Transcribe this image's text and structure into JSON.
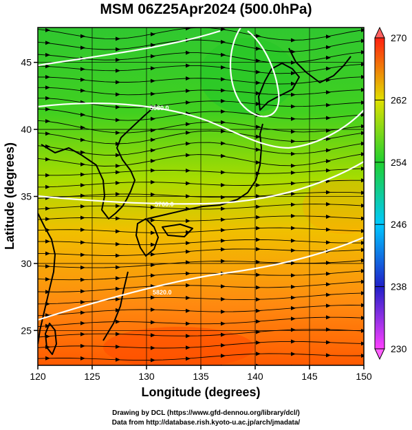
{
  "title": "MSM 06Z25Apr2024 (500.0hPa)",
  "axes": {
    "xlabel": "Longitude (degrees)",
    "ylabel": "Latitude  (degrees)",
    "xlim": [
      120,
      150
    ],
    "ylim": [
      22.4,
      47.6
    ],
    "xticks": [
      "120",
      "125",
      "130",
      "135",
      "140",
      "145",
      "150"
    ],
    "yticks": [
      "25",
      "30",
      "35",
      "40",
      "45"
    ]
  },
  "colorbar": {
    "ticks": [
      "230",
      "238",
      "246",
      "254",
      "262",
      "270"
    ],
    "min": 230,
    "max": 270,
    "colors": [
      "#e020e0",
      "#2020d0",
      "#00c8ff",
      "#20d040",
      "#c0e000",
      "#ff8000",
      "#ff2000"
    ]
  },
  "contours": [
    {
      "label": "5580.0"
    },
    {
      "label": "5760.0"
    },
    {
      "label": "5820.0"
    }
  ],
  "footer": {
    "line1": "Drawing by DCL (https://www.gfd-dennou.org/library/dcl/)",
    "line2": "Data from http://database.rish.kyoto-u.ac.jp/arch/jmadata/"
  }
}
